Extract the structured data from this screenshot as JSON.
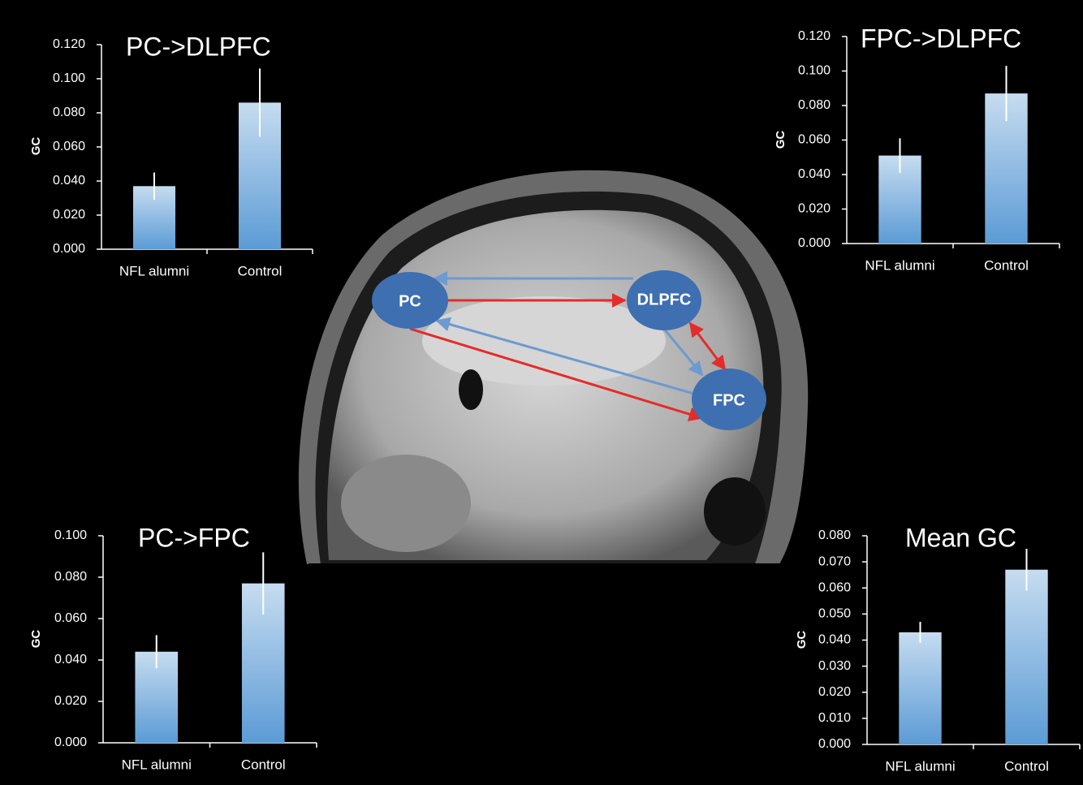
{
  "chart_data": [
    {
      "type": "bar",
      "title": "PC->DLPFC",
      "y_label": "GC",
      "categories": [
        "NFL alumni",
        "Control"
      ],
      "values": [
        0.037,
        0.086
      ],
      "errors": [
        0.008,
        0.02
      ],
      "color": "#5b9bd5",
      "ylim": [
        0,
        0.12
      ],
      "yticks": [
        {
          "value": 0,
          "label": "0.000"
        },
        {
          "value": 0.02,
          "label": "0.020"
        },
        {
          "value": 0.04,
          "label": "0.040"
        },
        {
          "value": 0.06,
          "label": "0.060"
        },
        {
          "value": 0.08,
          "label": "0.080"
        },
        {
          "value": 0.1,
          "label": "0.100"
        },
        {
          "value": 0.12,
          "label": "0.120"
        }
      ]
    },
    {
      "type": "bar",
      "title": "FPC->DLPFC",
      "y_label": "GC",
      "categories": [
        "NFL alumni",
        "Control"
      ],
      "values": [
        0.051,
        0.087
      ],
      "errors": [
        0.01,
        0.016
      ],
      "color": "#5b9bd5",
      "ylim": [
        0,
        0.12
      ],
      "yticks": [
        {
          "value": 0,
          "label": "0.000"
        },
        {
          "value": 0.02,
          "label": "0.020"
        },
        {
          "value": 0.04,
          "label": "0.040"
        },
        {
          "value": 0.06,
          "label": "0.060"
        },
        {
          "value": 0.08,
          "label": "0.080"
        },
        {
          "value": 0.1,
          "label": "0.100"
        },
        {
          "value": 0.12,
          "label": "0.120"
        }
      ]
    },
    {
      "type": "bar",
      "title": "PC->FPC",
      "y_label": "GC",
      "categories": [
        "NFL alumni",
        "Control"
      ],
      "values": [
        0.044,
        0.077
      ],
      "errors": [
        0.008,
        0.015
      ],
      "color": "#5b9bd5",
      "ylim": [
        0,
        0.1
      ],
      "yticks": [
        {
          "value": 0,
          "label": "0.000"
        },
        {
          "value": 0.02,
          "label": "0.020"
        },
        {
          "value": 0.04,
          "label": "0.040"
        },
        {
          "value": 0.06,
          "label": "0.060"
        },
        {
          "value": 0.08,
          "label": "0.080"
        },
        {
          "value": 0.1,
          "label": "0.100"
        }
      ]
    },
    {
      "type": "bar",
      "title": "Mean GC",
      "y_label": "GC",
      "categories": [
        "NFL alumni",
        "Control"
      ],
      "values": [
        0.043,
        0.067
      ],
      "errors": [
        0.004,
        0.008
      ],
      "color": "#5b9bd5",
      "ylim": [
        0,
        0.08
      ],
      "yticks": [
        {
          "value": 0,
          "label": "0.000"
        },
        {
          "value": 0.01,
          "label": "0.010"
        },
        {
          "value": 0.02,
          "label": "0.020"
        },
        {
          "value": 0.03,
          "label": "0.030"
        },
        {
          "value": 0.04,
          "label": "0.040"
        },
        {
          "value": 0.05,
          "label": "0.050"
        },
        {
          "value": 0.06,
          "label": "0.060"
        },
        {
          "value": 0.07,
          "label": "0.070"
        },
        {
          "value": 0.08,
          "label": "0.080"
        }
      ]
    }
  ],
  "diagram": {
    "nodes": [
      {
        "label": "PC"
      },
      {
        "label": "DLPFC"
      },
      {
        "label": "FPC"
      }
    ]
  }
}
